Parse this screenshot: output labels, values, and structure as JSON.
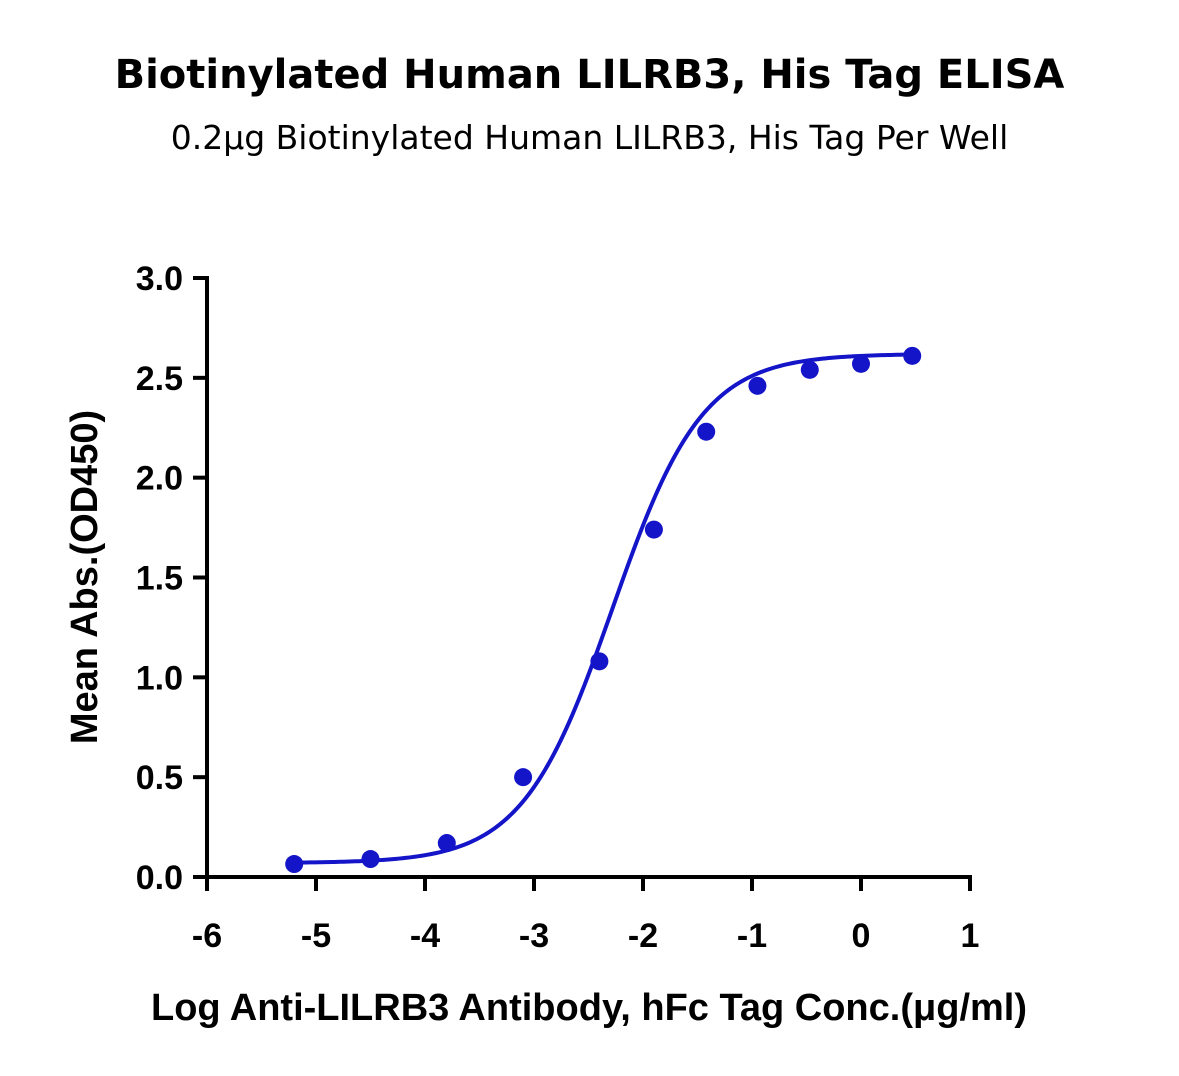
{
  "chart_data": {
    "type": "scatter",
    "title": "Biotinylated Human LILRB3, His Tag ELISA",
    "subtitle": "0.2μg Biotinylated Human LILRB3, His Tag Per Well",
    "xlabel": "Log Anti-LILRB3 Antibody, hFc Tag Conc.(μg/ml)",
    "ylabel": "Mean Abs.(OD450)",
    "xlim": [
      -6,
      1
    ],
    "ylim": [
      0,
      3
    ],
    "x_ticks": [
      "-6",
      "-5",
      "-4",
      "-3",
      "-2",
      "-1",
      "0",
      "1"
    ],
    "y_ticks": [
      "0.0",
      "0.5",
      "1.0",
      "1.5",
      "2.0",
      "2.5",
      "3.0"
    ],
    "series": [
      {
        "x": [
          -5.2,
          -4.5,
          -3.8,
          -3.1,
          -2.4,
          -1.9,
          -1.42,
          -0.95,
          -0.47,
          0.0,
          0.47
        ],
        "y": [
          0.065,
          0.09,
          0.17,
          0.5,
          1.08,
          1.74,
          2.23,
          2.46,
          2.54,
          2.57,
          2.61
        ],
        "color": "#1414c8",
        "fit": "4PL sigmoid"
      }
    ],
    "fit_params": {
      "bottom": 0.07,
      "top": 2.62,
      "log_ec50": -2.28,
      "hill": 1.05
    },
    "grid": false,
    "legend": "none"
  }
}
